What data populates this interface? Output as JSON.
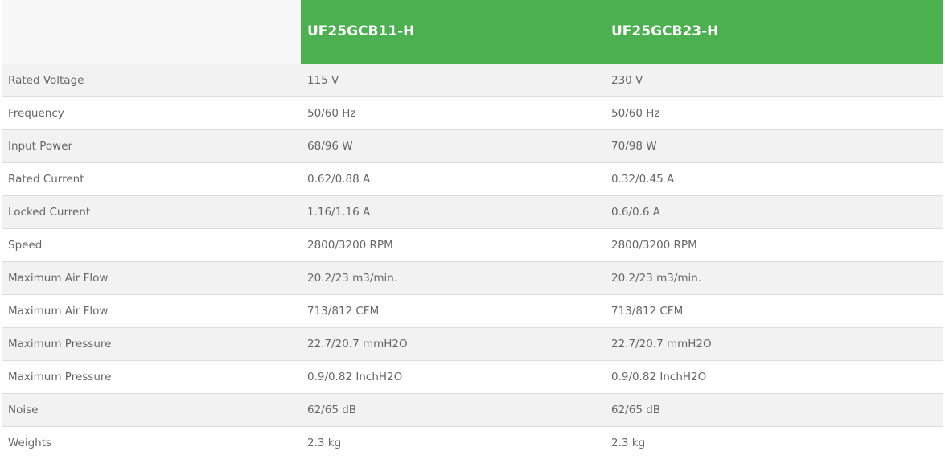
{
  "colors": {
    "header_green": "#4caf50",
    "row_alt": "#f2f2f2",
    "text": "#666666"
  },
  "table": {
    "headers": [
      "",
      "UF25GCB11-H",
      "UF25GCB23-H"
    ],
    "rows": [
      [
        "Rated Voltage",
        "115 V",
        "230 V"
      ],
      [
        "Frequency",
        "50/60 Hz",
        "50/60 Hz"
      ],
      [
        "Input Power",
        "68/96 W",
        "70/98 W"
      ],
      [
        "Rated Current",
        "0.62/0.88 A",
        "0.32/0.45 A"
      ],
      [
        "Locked Current",
        "1.16/1.16 A",
        "0.6/0.6 A"
      ],
      [
        "Speed",
        "2800/3200 RPM",
        "2800/3200 RPM"
      ],
      [
        "Maximum Air Flow",
        "20.2/23 m3/min.",
        "20.2/23 m3/min."
      ],
      [
        "Maximum Air Flow",
        "713/812 CFM",
        "713/812 CFM"
      ],
      [
        "Maximum Pressure",
        "22.7/20.7 mmH2O",
        "22.7/20.7 mmH2O"
      ],
      [
        "Maximum Pressure",
        "0.9/0.82 InchH2O",
        "0.9/0.82 InchH2O"
      ],
      [
        "Noise",
        "62/65 dB",
        "62/65 dB"
      ],
      [
        "Weights",
        "2.3 kg",
        "2.3 kg"
      ]
    ]
  }
}
